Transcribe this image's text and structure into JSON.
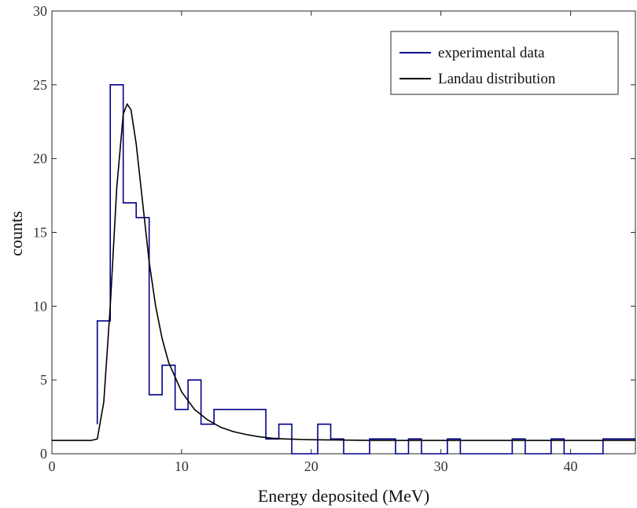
{
  "chart_data": {
    "type": "line",
    "title": "",
    "xlabel": "Energy deposited (MeV)",
    "ylabel": "counts",
    "xlim": [
      0,
      45
    ],
    "ylim": [
      0,
      30
    ],
    "xticks": [
      0,
      10,
      20,
      30,
      40
    ],
    "yticks": [
      0,
      5,
      10,
      15,
      20,
      25,
      30
    ],
    "grid": false,
    "legend_position": "top-right",
    "series": [
      {
        "name": "experimental data",
        "style": "step",
        "color": "#00008b",
        "bin_edges": [
          3.5,
          4.5,
          5.5,
          6.5,
          7.5,
          8.5,
          9.5,
          10.5,
          11.5,
          12.5,
          13.5,
          14.5,
          15.5,
          16.5,
          17.5,
          18.5,
          19.5,
          20.5,
          21.5,
          22.5,
          23.5,
          24.5,
          25.5,
          26.5,
          27.5,
          28.5,
          29.5,
          30.5,
          31.5,
          32.5,
          33.5,
          34.5,
          35.5,
          36.5,
          37.5,
          38.5,
          39.5,
          40.5,
          41.5,
          42.5,
          43.5,
          44.5,
          45
        ],
        "counts": [
          9,
          25,
          17,
          16,
          4,
          6,
          3,
          5,
          2,
          3,
          3,
          3,
          3,
          1,
          2,
          0,
          0,
          2,
          1,
          0,
          0,
          1,
          1,
          0,
          1,
          0,
          0,
          1,
          0,
          0,
          0,
          0,
          1,
          0,
          0,
          1,
          0,
          0,
          0,
          1,
          1,
          1
        ]
      },
      {
        "name": "Landau distribution",
        "style": "line",
        "color": "#000000",
        "x": [
          0,
          3.0,
          3.5,
          4.0,
          4.5,
          5.0,
          5.5,
          5.8,
          6.1,
          6.5,
          7.0,
          7.5,
          8.0,
          8.5,
          9.0,
          10.0,
          11.0,
          12.0,
          13.0,
          14.0,
          15.0,
          16.0,
          17.0,
          18.0,
          20.0,
          25.0,
          30.0,
          35.0,
          40.0,
          45.0
        ],
        "y": [
          0.9,
          0.9,
          1.0,
          3.5,
          10.0,
          18.0,
          23.0,
          23.7,
          23.3,
          21.0,
          17.0,
          13.0,
          10.0,
          7.8,
          6.2,
          4.2,
          3.0,
          2.3,
          1.8,
          1.5,
          1.3,
          1.15,
          1.05,
          1.0,
          0.95,
          0.9,
          0.9,
          0.9,
          0.9,
          0.9
        ]
      }
    ]
  }
}
